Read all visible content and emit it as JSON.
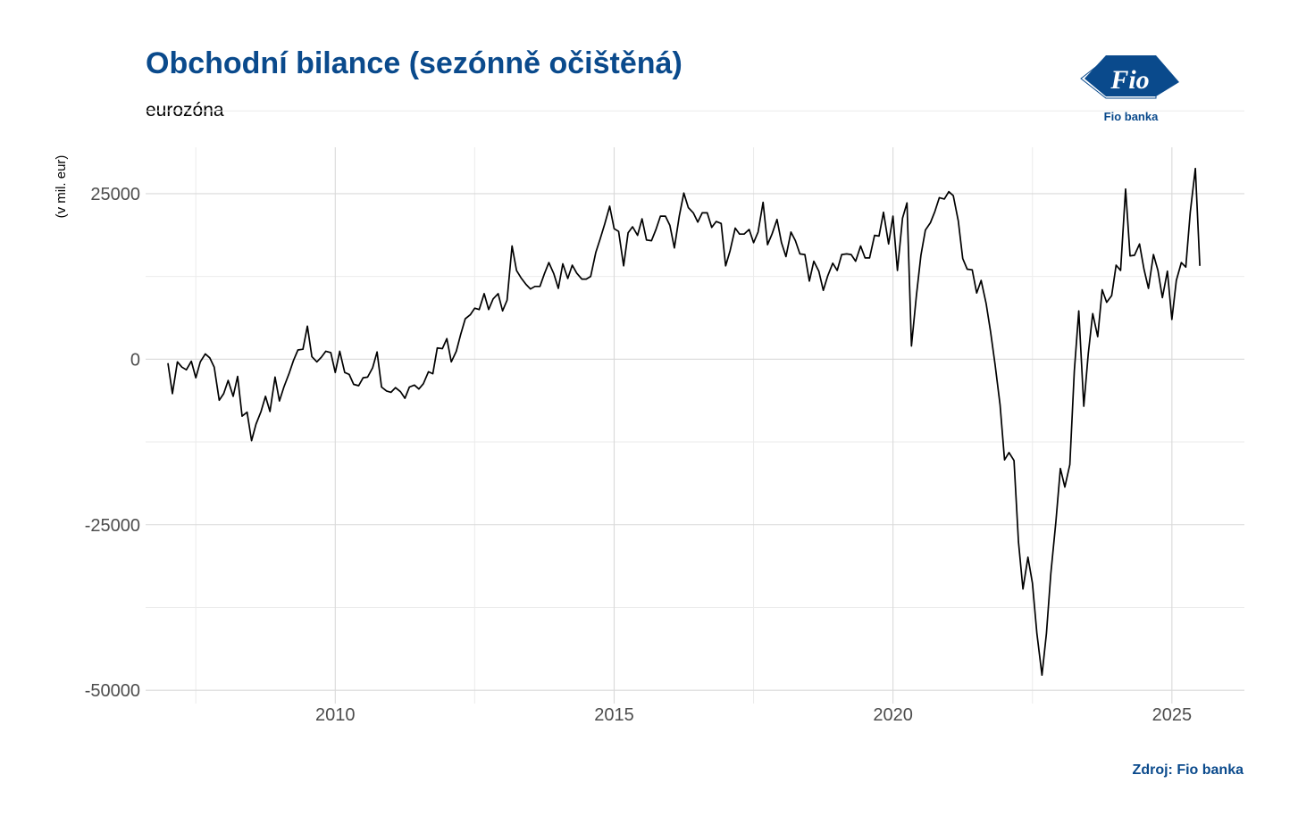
{
  "logo": {
    "text": "Fio",
    "label": "Fio banka",
    "color": "#0a4a8c"
  },
  "caption": "Zdroj: Fio banka",
  "chart_data": {
    "type": "line",
    "title": "Obchodní bilance (sezónně očištěná)",
    "subtitle": "eurozóna",
    "xlabel": "",
    "ylabel": "(v mil. eur)",
    "xlim": [
      2006.6,
      2026.3
    ],
    "ylim": [
      -52000,
      32000
    ],
    "x_ticks": [
      2010,
      2015,
      2020,
      2025
    ],
    "y_ticks": [
      -50000,
      -25000,
      0,
      25000
    ],
    "grid": true,
    "line_color": "#000000",
    "series": [
      {
        "values": [
          [
            2007.0,
            -600
          ],
          [
            2007.08,
            -5200
          ],
          [
            2007.17,
            -400
          ],
          [
            2007.25,
            -1200
          ],
          [
            2007.33,
            -1600
          ],
          [
            2007.42,
            -300
          ],
          [
            2007.5,
            -2800
          ],
          [
            2007.58,
            -400
          ],
          [
            2007.67,
            800
          ],
          [
            2007.75,
            200
          ],
          [
            2007.83,
            -1200
          ],
          [
            2007.92,
            -6200
          ],
          [
            2008.0,
            -5200
          ],
          [
            2008.08,
            -3200
          ],
          [
            2008.17,
            -5600
          ],
          [
            2008.25,
            -2600
          ],
          [
            2008.33,
            -8600
          ],
          [
            2008.42,
            -8000
          ],
          [
            2008.5,
            -12300
          ],
          [
            2008.58,
            -9800
          ],
          [
            2008.67,
            -7900
          ],
          [
            2008.75,
            -5600
          ],
          [
            2008.83,
            -7900
          ],
          [
            2008.92,
            -2700
          ],
          [
            2009.0,
            -6300
          ],
          [
            2009.08,
            -4200
          ],
          [
            2009.17,
            -2200
          ],
          [
            2009.25,
            -200
          ],
          [
            2009.33,
            1400
          ],
          [
            2009.42,
            1500
          ],
          [
            2009.5,
            5000
          ],
          [
            2009.58,
            400
          ],
          [
            2009.67,
            -400
          ],
          [
            2009.75,
            300
          ],
          [
            2009.83,
            1200
          ],
          [
            2009.92,
            1000
          ],
          [
            2010.0,
            -2000
          ],
          [
            2010.08,
            1200
          ],
          [
            2010.17,
            -2000
          ],
          [
            2010.25,
            -2300
          ],
          [
            2010.33,
            -3800
          ],
          [
            2010.42,
            -4000
          ],
          [
            2010.5,
            -2800
          ],
          [
            2010.58,
            -2700
          ],
          [
            2010.67,
            -1300
          ],
          [
            2010.75,
            1100
          ],
          [
            2010.83,
            -4200
          ],
          [
            2010.92,
            -4800
          ],
          [
            2011.0,
            -5000
          ],
          [
            2011.08,
            -4300
          ],
          [
            2011.17,
            -4900
          ],
          [
            2011.25,
            -5900
          ],
          [
            2011.33,
            -4200
          ],
          [
            2011.42,
            -3900
          ],
          [
            2011.5,
            -4500
          ],
          [
            2011.58,
            -3700
          ],
          [
            2011.67,
            -1900
          ],
          [
            2011.75,
            -2200
          ],
          [
            2011.83,
            1700
          ],
          [
            2011.92,
            1600
          ],
          [
            2012.0,
            3100
          ],
          [
            2012.08,
            -400
          ],
          [
            2012.17,
            1200
          ],
          [
            2012.25,
            3800
          ],
          [
            2012.33,
            6100
          ],
          [
            2012.42,
            6700
          ],
          [
            2012.5,
            7700
          ],
          [
            2012.58,
            7500
          ],
          [
            2012.67,
            9900
          ],
          [
            2012.75,
            7500
          ],
          [
            2012.83,
            9100
          ],
          [
            2012.92,
            9900
          ],
          [
            2013.0,
            7300
          ],
          [
            2013.08,
            8900
          ],
          [
            2013.17,
            17100
          ],
          [
            2013.25,
            13400
          ],
          [
            2013.33,
            12300
          ],
          [
            2013.42,
            11300
          ],
          [
            2013.5,
            10600
          ],
          [
            2013.58,
            11000
          ],
          [
            2013.67,
            11000
          ],
          [
            2013.75,
            12900
          ],
          [
            2013.83,
            14600
          ],
          [
            2013.92,
            12900
          ],
          [
            2014.0,
            10700
          ],
          [
            2014.08,
            14400
          ],
          [
            2014.17,
            12200
          ],
          [
            2014.25,
            14200
          ],
          [
            2014.33,
            13000
          ],
          [
            2014.42,
            12100
          ],
          [
            2014.5,
            12100
          ],
          [
            2014.58,
            12500
          ],
          [
            2014.67,
            16100
          ],
          [
            2014.75,
            18200
          ],
          [
            2014.83,
            20400
          ],
          [
            2014.92,
            23100
          ],
          [
            2015.0,
            19700
          ],
          [
            2015.08,
            19300
          ],
          [
            2015.17,
            14100
          ],
          [
            2015.25,
            19100
          ],
          [
            2015.33,
            20000
          ],
          [
            2015.42,
            18700
          ],
          [
            2015.5,
            21200
          ],
          [
            2015.58,
            18000
          ],
          [
            2015.67,
            17900
          ],
          [
            2015.75,
            19600
          ],
          [
            2015.83,
            21600
          ],
          [
            2015.92,
            21600
          ],
          [
            2016.0,
            20200
          ],
          [
            2016.08,
            16800
          ],
          [
            2016.17,
            21700
          ],
          [
            2016.25,
            25100
          ],
          [
            2016.33,
            22900
          ],
          [
            2016.42,
            22100
          ],
          [
            2016.5,
            20700
          ],
          [
            2016.58,
            22100
          ],
          [
            2016.67,
            22100
          ],
          [
            2016.75,
            19900
          ],
          [
            2016.83,
            20800
          ],
          [
            2016.92,
            20500
          ],
          [
            2017.0,
            14100
          ],
          [
            2017.08,
            16400
          ],
          [
            2017.17,
            19800
          ],
          [
            2017.25,
            18900
          ],
          [
            2017.33,
            18900
          ],
          [
            2017.42,
            19600
          ],
          [
            2017.5,
            17600
          ],
          [
            2017.58,
            19200
          ],
          [
            2017.67,
            23700
          ],
          [
            2017.75,
            17300
          ],
          [
            2017.83,
            18900
          ],
          [
            2017.92,
            21100
          ],
          [
            2018.0,
            17600
          ],
          [
            2018.08,
            15500
          ],
          [
            2018.17,
            19200
          ],
          [
            2018.25,
            17900
          ],
          [
            2018.33,
            15900
          ],
          [
            2018.42,
            15800
          ],
          [
            2018.5,
            11800
          ],
          [
            2018.58,
            14800
          ],
          [
            2018.67,
            13300
          ],
          [
            2018.75,
            10400
          ],
          [
            2018.83,
            12600
          ],
          [
            2018.92,
            14500
          ],
          [
            2019.0,
            13400
          ],
          [
            2019.08,
            15800
          ],
          [
            2019.17,
            15900
          ],
          [
            2019.25,
            15800
          ],
          [
            2019.33,
            14800
          ],
          [
            2019.42,
            17100
          ],
          [
            2019.5,
            15300
          ],
          [
            2019.58,
            15300
          ],
          [
            2019.67,
            18700
          ],
          [
            2019.75,
            18600
          ],
          [
            2019.83,
            22200
          ],
          [
            2019.92,
            17400
          ],
          [
            2020.0,
            21600
          ],
          [
            2020.08,
            13400
          ],
          [
            2020.17,
            21300
          ],
          [
            2020.25,
            23600
          ],
          [
            2020.33,
            2000
          ],
          [
            2020.42,
            9700
          ],
          [
            2020.5,
            15700
          ],
          [
            2020.58,
            19500
          ],
          [
            2020.67,
            20600
          ],
          [
            2020.75,
            22300
          ],
          [
            2020.83,
            24400
          ],
          [
            2020.92,
            24200
          ],
          [
            2021.0,
            25300
          ],
          [
            2021.08,
            24700
          ],
          [
            2021.17,
            20900
          ],
          [
            2021.25,
            15200
          ],
          [
            2021.33,
            13600
          ],
          [
            2021.42,
            13500
          ],
          [
            2021.5,
            10000
          ],
          [
            2021.58,
            11900
          ],
          [
            2021.67,
            8400
          ],
          [
            2021.75,
            4100
          ],
          [
            2021.83,
            -800
          ],
          [
            2021.92,
            -6900
          ],
          [
            2022.0,
            -15200
          ],
          [
            2022.08,
            -14100
          ],
          [
            2022.17,
            -15300
          ],
          [
            2022.25,
            -27600
          ],
          [
            2022.33,
            -34700
          ],
          [
            2022.42,
            -29900
          ],
          [
            2022.5,
            -33800
          ],
          [
            2022.58,
            -41400
          ],
          [
            2022.67,
            -47700
          ],
          [
            2022.75,
            -41400
          ],
          [
            2022.83,
            -32400
          ],
          [
            2022.92,
            -24500
          ],
          [
            2023.0,
            -16500
          ],
          [
            2023.08,
            -19300
          ],
          [
            2023.17,
            -15900
          ],
          [
            2023.25,
            -1800
          ],
          [
            2023.33,
            7300
          ],
          [
            2023.42,
            -7100
          ],
          [
            2023.5,
            800
          ],
          [
            2023.58,
            6900
          ],
          [
            2023.67,
            3400
          ],
          [
            2023.75,
            10500
          ],
          [
            2023.83,
            8600
          ],
          [
            2023.92,
            9600
          ],
          [
            2024.0,
            14200
          ],
          [
            2024.08,
            13400
          ],
          [
            2024.17,
            25700
          ],
          [
            2024.25,
            15600
          ],
          [
            2024.33,
            15700
          ],
          [
            2024.42,
            17400
          ],
          [
            2024.5,
            13600
          ],
          [
            2024.58,
            10700
          ],
          [
            2024.67,
            15800
          ],
          [
            2024.75,
            13400
          ],
          [
            2024.83,
            9300
          ],
          [
            2024.92,
            13300
          ],
          [
            2025.0,
            6000
          ],
          [
            2025.08,
            11900
          ],
          [
            2025.17,
            14600
          ],
          [
            2025.25,
            13900
          ],
          [
            2025.33,
            22200
          ],
          [
            2025.42,
            28800
          ],
          [
            2025.5,
            14100
          ]
        ]
      }
    ]
  }
}
